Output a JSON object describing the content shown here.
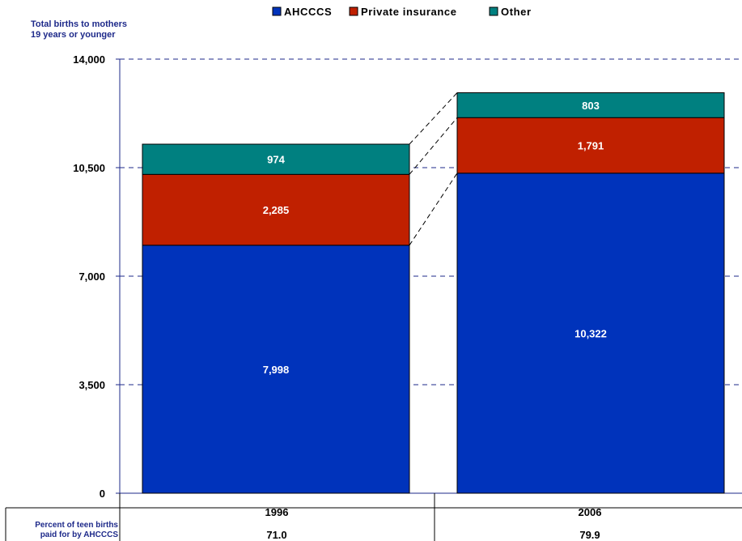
{
  "chart_data": {
    "type": "bar",
    "stacked": true,
    "ylabel": "Total births to mothers 19 years or younger",
    "ylabel_lines": [
      "Total births to mothers",
      "19 years or younger"
    ],
    "ylim": [
      0,
      14000
    ],
    "yticks": [
      0,
      3500,
      7000,
      10500,
      14000
    ],
    "ytick_labels": [
      "0",
      "3,500",
      "7,000",
      "10,500",
      "14,000"
    ],
    "grid": true,
    "legend_position": "top-center",
    "categories": [
      "1996",
      "2006"
    ],
    "series": [
      {
        "name": "AHCCCS",
        "values": [
          7998,
          10322
        ],
        "labels": [
          "7,998",
          "10,322"
        ],
        "color": "#0033bb"
      },
      {
        "name": "Private insurance",
        "values": [
          2285,
          1791
        ],
        "labels": [
          "2,285",
          "1,791"
        ],
        "color": "#c02000"
      },
      {
        "name": "Other",
        "values": [
          974,
          803
        ],
        "labels": [
          "974",
          "803"
        ],
        "color": "#008080"
      }
    ],
    "table": {
      "row_label_lines": [
        "Percent of teen births",
        "paid for by AHCCCS"
      ],
      "values": [
        "71.0",
        "79.9"
      ]
    },
    "colors": {
      "axis": "#1e2a8a",
      "grid": "#1e2a8a",
      "series_lines": "#000000"
    }
  }
}
